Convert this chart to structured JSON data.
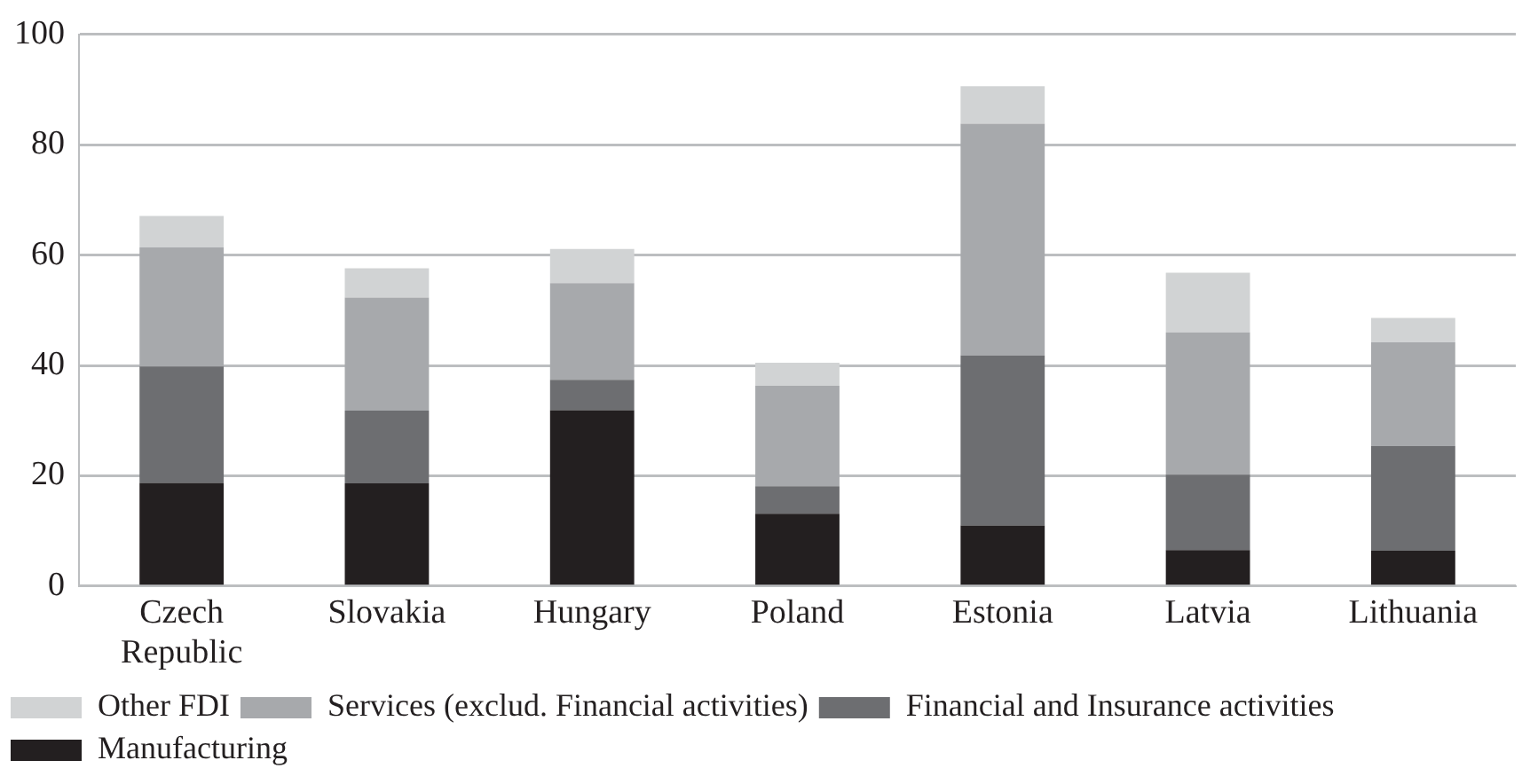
{
  "chart_data": {
    "type": "bar",
    "stacked": true,
    "categories": [
      "Czech Republic",
      "Slovakia",
      "Hungary",
      "Poland",
      "Estonia",
      "Latvia",
      "Lithuania"
    ],
    "series": [
      {
        "name": "Manufacturing",
        "color": "#231f20",
        "values": [
          18.7,
          18.6,
          31.9,
          13.1,
          11.0,
          6.5,
          6.4
        ]
      },
      {
        "name": "Financial and Insurance activities",
        "color": "#6d6e71",
        "values": [
          21.1,
          13.2,
          5.5,
          5.0,
          30.8,
          13.7,
          19.0
        ]
      },
      {
        "name": "Services (exclud. Financial activities)",
        "color": "#a7a9ac",
        "values": [
          21.6,
          20.5,
          17.5,
          18.2,
          42.0,
          25.8,
          18.8
        ]
      },
      {
        "name": "Other FDI",
        "color": "#d1d3d4",
        "values": [
          5.7,
          5.3,
          6.2,
          4.2,
          6.8,
          10.8,
          4.4
        ]
      }
    ],
    "ylim": [
      0,
      100
    ],
    "yticks": [
      0,
      20,
      40,
      60,
      80,
      100
    ],
    "grid": "y",
    "legend": "bottom"
  }
}
